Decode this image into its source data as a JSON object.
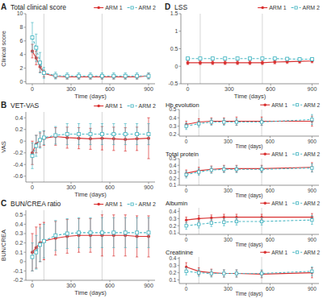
{
  "chart_data": [
    {
      "type": "line",
      "title": "Total clinical score",
      "x_label": "Time (days)",
      "y_label": "Clinical score",
      "annotations": [
        "A"
      ],
      "x": [
        0,
        30,
        60,
        90,
        180,
        270,
        360,
        450,
        540,
        630,
        720,
        810,
        900
      ],
      "series": [
        {
          "name": "ARM 1",
          "color": "#d93030",
          "marker": "circle",
          "line_style": "solid",
          "values": [
            4.5,
            3.5,
            2.2,
            1.2,
            0.8,
            0.7,
            0.7,
            0.7,
            0.7,
            0.7,
            0.7,
            0.7,
            0.85
          ],
          "errors": [
            1.0,
            1.0,
            0.8,
            0.5,
            0.3,
            0.3,
            0.3,
            0.3,
            0.3,
            0.3,
            0.3,
            0.3,
            0.4
          ]
        },
        {
          "name": "ARM 2",
          "color": "#4cb8c4",
          "marker": "square",
          "line_style": "dashed",
          "values": [
            6.5,
            5.0,
            2.8,
            1.3,
            0.9,
            0.85,
            0.85,
            0.85,
            0.85,
            0.85,
            0.85,
            0.85,
            0.85
          ],
          "errors": [
            2.2,
            2.0,
            1.5,
            0.8,
            0.5,
            0.45,
            0.45,
            0.45,
            0.45,
            0.45,
            0.45,
            0.45,
            0.45
          ]
        }
      ],
      "vlines": [
        90,
        540
      ],
      "xlim": [
        -50,
        950
      ],
      "xticks": [
        0,
        300,
        600,
        900
      ],
      "ylim": [
        -0.3,
        10
      ],
      "yticks": [
        0,
        2,
        4,
        6,
        8,
        10
      ],
      "legend": "upper right"
    },
    {
      "type": "line",
      "title": "VET-VAS",
      "x_label": "Time (days)",
      "y_label": "VAS",
      "annotations": [
        "B"
      ],
      "x": [
        0,
        30,
        60,
        90,
        180,
        270,
        360,
        450,
        540,
        630,
        720,
        810,
        900
      ],
      "series": [
        {
          "name": "ARM 1",
          "color": "#d93030",
          "marker": "circle",
          "line_style": "solid",
          "values": [
            -0.2,
            -0.05,
            0.02,
            0.05,
            0.08,
            0.06,
            0.05,
            0.04,
            0.05,
            0.04,
            0.03,
            0.04,
            0.05
          ],
          "errors": [
            0.2,
            0.15,
            0.12,
            0.12,
            0.15,
            0.18,
            0.18,
            0.18,
            0.2,
            0.2,
            0.2,
            0.2,
            0.35
          ]
        },
        {
          "name": "ARM 2",
          "color": "#4cb8c4",
          "marker": "square",
          "line_style": "dashed",
          "values": [
            -0.25,
            -0.08,
            0.02,
            0.06,
            0.1,
            0.12,
            0.12,
            0.12,
            0.12,
            0.12,
            0.12,
            0.12,
            0.12
          ],
          "errors": [
            0.22,
            0.18,
            0.14,
            0.12,
            0.15,
            0.18,
            0.18,
            0.18,
            0.18,
            0.18,
            0.18,
            0.18,
            0.18
          ]
        }
      ],
      "vlines": [
        90,
        540
      ],
      "xlim": [
        -50,
        950
      ],
      "xticks": [
        0,
        300,
        600,
        900
      ],
      "ylim": [
        -0.7,
        0.5
      ],
      "yticks": [
        -0.6,
        -0.4,
        -0.2,
        0,
        0.2,
        0.4
      ],
      "legend": "upper right"
    },
    {
      "type": "line",
      "title": "BUN/CREA ratio",
      "x_label": "Time (days)",
      "y_label": "BUN/CREA",
      "annotations": [
        "C"
      ],
      "x": [
        0,
        30,
        60,
        90,
        180,
        270,
        360,
        450,
        540,
        630,
        720,
        810,
        900
      ],
      "series": [
        {
          "name": "ARM 1",
          "color": "#d93030",
          "marker": "circle",
          "line_style": "solid",
          "values": [
            0.1,
            0.15,
            0.2,
            0.22,
            0.25,
            0.27,
            0.28,
            0.28,
            0.28,
            0.28,
            0.28,
            0.27,
            0.27
          ],
          "errors": [
            0.2,
            0.22,
            0.2,
            0.2,
            0.18,
            0.18,
            0.18,
            0.18,
            0.22,
            0.22,
            0.22,
            0.22,
            0.22
          ]
        },
        {
          "name": "ARM 2",
          "color": "#4cb8c4",
          "marker": "square",
          "line_style": "dashed",
          "values": [
            0.05,
            0.1,
            0.18,
            0.22,
            0.28,
            0.3,
            0.31,
            0.31,
            0.31,
            0.31,
            0.31,
            0.31,
            0.31
          ],
          "errors": [
            0.15,
            0.18,
            0.18,
            0.18,
            0.16,
            0.16,
            0.16,
            0.16,
            0.16,
            0.16,
            0.16,
            0.16,
            0.16
          ]
        }
      ],
      "vlines": [
        90,
        540
      ],
      "xlim": [
        -50,
        950
      ],
      "xticks": [
        0,
        300,
        600,
        900
      ],
      "ylim": [
        -0.2,
        0.55
      ],
      "yticks": [
        -0.2,
        -0.1,
        0,
        0.1,
        0.2,
        0.3,
        0.4,
        0.5
      ],
      "legend": "upper right"
    },
    {
      "type": "line",
      "title": "LSS",
      "x_label": "Time (days)",
      "annotations": [
        "D"
      ],
      "x": [
        0,
        90,
        180,
        270,
        360,
        450,
        540,
        630,
        720,
        810,
        900
      ],
      "series": [
        {
          "name": "ARM 1",
          "color": "#d93030",
          "marker": "circle",
          "line_style": "solid",
          "values": [
            0.1,
            0.1,
            0.1,
            0.1,
            0.1,
            0.1,
            0.1,
            0.12,
            0.13,
            0.14,
            0.15
          ],
          "errors": [
            0.05,
            0.05,
            0.05,
            0.05,
            0.05,
            0.05,
            0.05,
            0.05,
            0.05,
            0.05,
            0.05
          ]
        },
        {
          "name": "ARM 2",
          "color": "#4cb8c4",
          "marker": "square",
          "line_style": "dashed",
          "values": [
            0.22,
            0.22,
            0.22,
            0.22,
            0.22,
            0.22,
            0.22,
            0.22,
            0.21,
            0.2,
            0.2
          ],
          "errors": [
            0.04,
            0.04,
            0.04,
            0.04,
            0.04,
            0.04,
            0.04,
            0.04,
            0.04,
            0.04,
            0.04
          ]
        }
      ],
      "vlines": [
        90,
        540
      ],
      "xlim": [
        -50,
        950
      ],
      "xticks": [
        0,
        300,
        600,
        900
      ],
      "ylim": [
        -0.5,
        1.5
      ],
      "yticks": [
        -0.5,
        0,
        0.5,
        1,
        1.5
      ],
      "legend": "upper right"
    },
    {
      "type": "line",
      "title": "Hb evolution",
      "x_label": "Time (days)",
      "x": [
        0,
        90,
        180,
        270,
        360,
        540,
        900
      ],
      "series": [
        {
          "name": "ARM 1",
          "color": "#d93030",
          "marker": "circle",
          "line_style": "solid",
          "values": [
            0.32,
            0.35,
            0.36,
            0.36,
            0.36,
            0.36,
            0.36
          ],
          "errors": [
            0.04,
            0.04,
            0.04,
            0.04,
            0.05,
            0.05,
            0.06
          ]
        },
        {
          "name": "ARM 2",
          "color": "#4cb8c4",
          "marker": "square",
          "line_style": "dashed",
          "values": [
            0.3,
            0.33,
            0.35,
            0.35,
            0.35,
            0.35,
            0.38
          ],
          "errors": [
            0.04,
            0.04,
            0.04,
            0.04,
            0.04,
            0.04,
            0.06
          ]
        }
      ],
      "vlines": [
        90,
        540
      ],
      "xlim": [
        -50,
        950
      ],
      "xticks": [
        0,
        300,
        600,
        900
      ],
      "ylim": [
        0.18,
        0.5
      ],
      "yticks": [
        0.2,
        0.3,
        0.4,
        0.5
      ],
      "legend": "upper right"
    },
    {
      "type": "line",
      "title": "Total protein",
      "x_label": "Time (days)",
      "x": [
        0,
        90,
        180,
        270,
        360,
        540,
        900
      ],
      "series": [
        {
          "name": "ARM 1",
          "color": "#d93030",
          "marker": "circle",
          "line_style": "solid",
          "values": [
            0.28,
            0.32,
            0.34,
            0.35,
            0.35,
            0.35,
            0.37
          ],
          "errors": [
            0.05,
            0.05,
            0.05,
            0.05,
            0.05,
            0.05,
            0.07
          ]
        },
        {
          "name": "ARM 2",
          "color": "#4cb8c4",
          "marker": "square",
          "line_style": "dashed",
          "values": [
            0.26,
            0.3,
            0.33,
            0.34,
            0.34,
            0.34,
            0.36
          ],
          "errors": [
            0.05,
            0.05,
            0.05,
            0.05,
            0.05,
            0.05,
            0.06
          ]
        }
      ],
      "vlines": [
        90,
        540
      ],
      "xlim": [
        -50,
        950
      ],
      "xticks": [
        0,
        300,
        600,
        900
      ],
      "ylim": [
        0.1,
        0.5
      ],
      "yticks": [
        0.1,
        0.2,
        0.3,
        0.4,
        0.5
      ],
      "legend": "upper right"
    },
    {
      "type": "line",
      "title": "Albumin",
      "x_label": "Time (days)",
      "x": [
        0,
        90,
        180,
        270,
        360,
        540,
        900
      ],
      "series": [
        {
          "name": "ARM 1",
          "color": "#d93030",
          "marker": "circle",
          "line_style": "solid",
          "values": [
            0.28,
            0.3,
            0.31,
            0.32,
            0.32,
            0.32,
            0.32
          ],
          "errors": [
            0.04,
            0.04,
            0.04,
            0.04,
            0.04,
            0.04,
            0.05
          ]
        },
        {
          "name": "ARM 2",
          "color": "#4cb8c4",
          "marker": "square",
          "line_style": "dashed",
          "values": [
            0.2,
            0.22,
            0.24,
            0.25,
            0.26,
            0.26,
            0.28
          ],
          "errors": [
            0.05,
            0.05,
            0.05,
            0.05,
            0.05,
            0.05,
            0.06
          ]
        }
      ],
      "vlines": [
        90,
        540
      ],
      "xlim": [
        -50,
        950
      ],
      "xticks": [
        0,
        300,
        600,
        900
      ],
      "ylim": [
        0.08,
        0.45
      ],
      "yticks": [
        0.1,
        0.2,
        0.3,
        0.4
      ],
      "legend": "upper right"
    },
    {
      "type": "line",
      "title": "Creatinine",
      "x_label": "Time (days)",
      "x": [
        0,
        90,
        180,
        270,
        360,
        540,
        900
      ],
      "series": [
        {
          "name": "ARM 1",
          "color": "#d93030",
          "marker": "circle",
          "line_style": "solid",
          "values": [
            0.28,
            0.22,
            0.2,
            0.19,
            0.19,
            0.18,
            0.2
          ],
          "errors": [
            0.06,
            0.05,
            0.05,
            0.05,
            0.05,
            0.05,
            0.07
          ]
        },
        {
          "name": "ARM 2",
          "color": "#4cb8c4",
          "marker": "square",
          "line_style": "dashed",
          "values": [
            0.22,
            0.2,
            0.19,
            0.19,
            0.19,
            0.19,
            0.22
          ],
          "errors": [
            0.05,
            0.05,
            0.05,
            0.05,
            0.05,
            0.05,
            0.06
          ]
        }
      ],
      "vlines": [
        90,
        540
      ],
      "xlim": [
        -50,
        950
      ],
      "xticks": [
        0,
        300,
        600,
        900
      ],
      "ylim": [
        0.05,
        0.42
      ],
      "yticks": [
        0.1,
        0.2,
        0.3,
        0.4
      ],
      "legend": "upper right"
    }
  ]
}
